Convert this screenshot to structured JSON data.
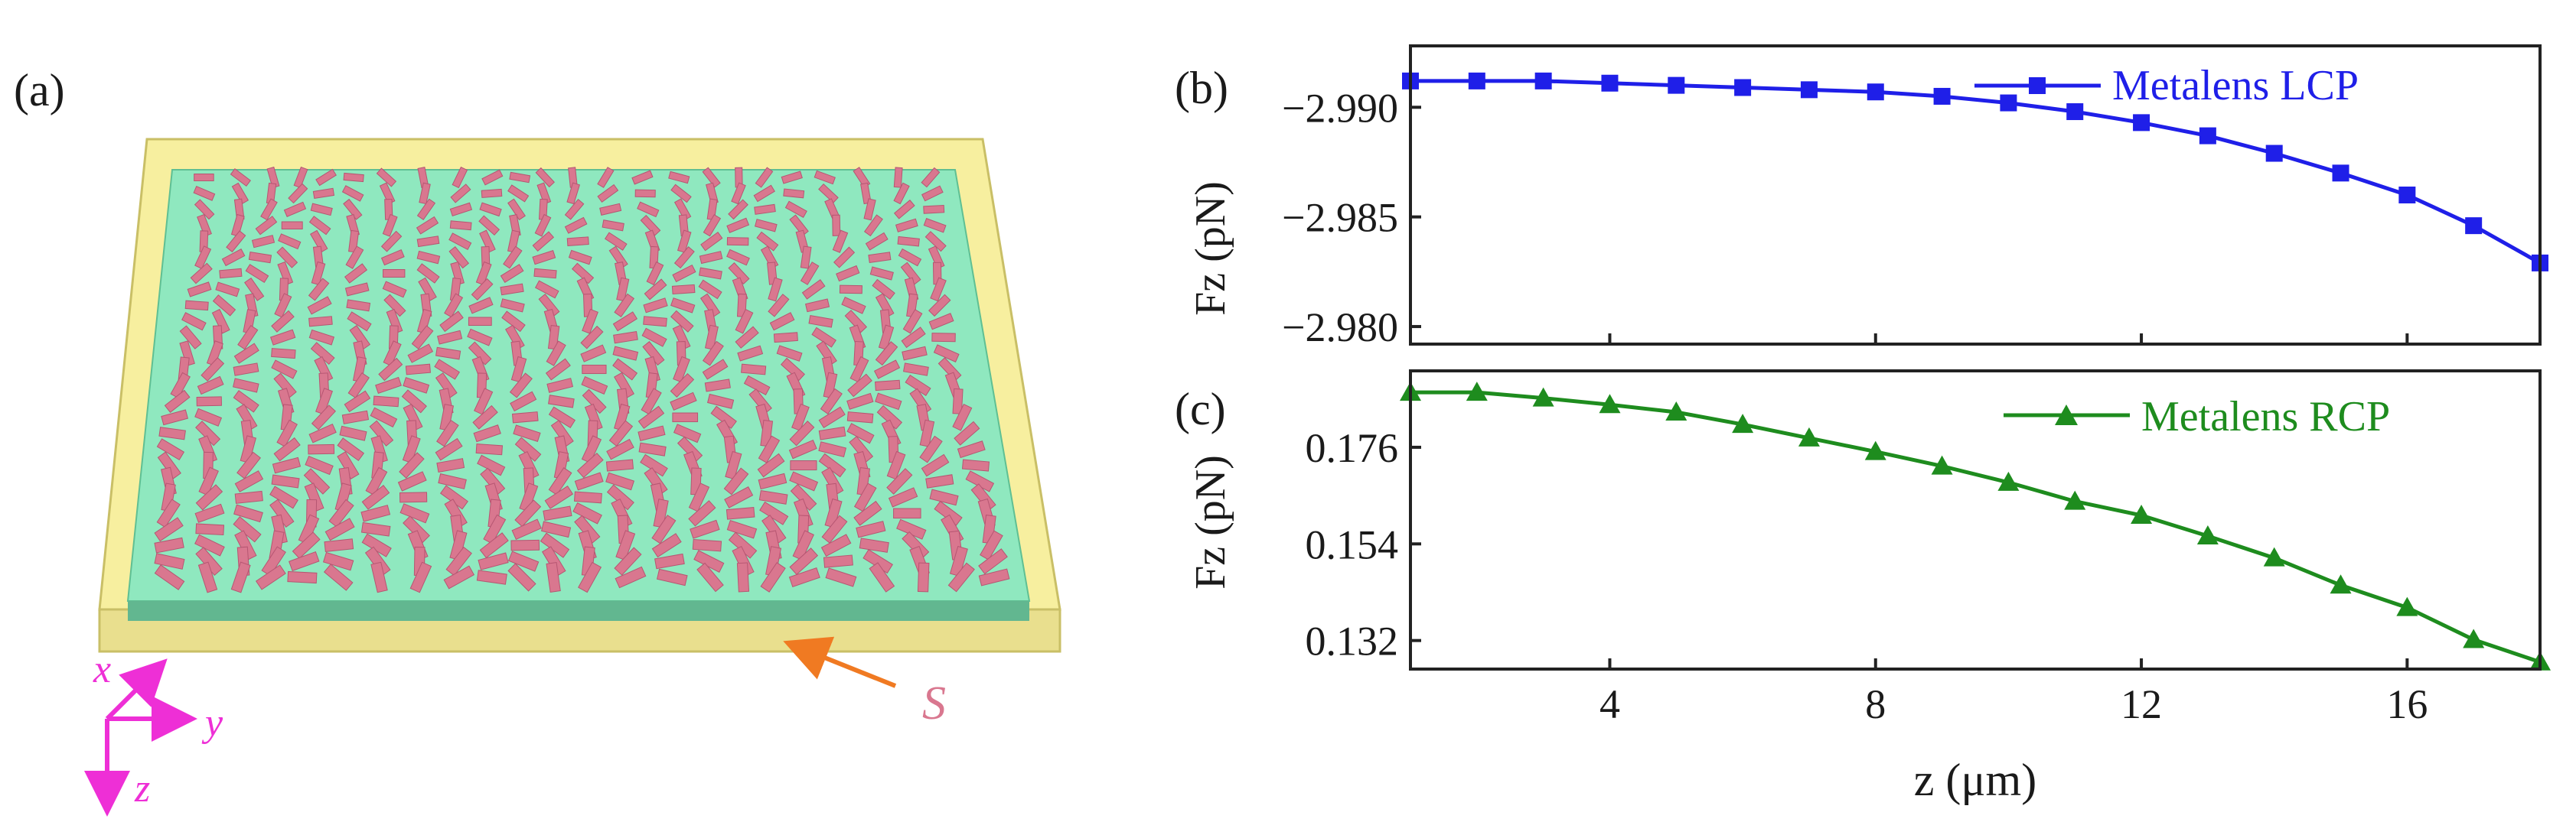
{
  "panel_a": {
    "label": "(a)",
    "annotation_s": "S",
    "axes": {
      "x": "x",
      "y": "y",
      "z": "z"
    },
    "colors": {
      "substrate": "#f7ef9f",
      "layer": "#8fe8bf",
      "fins": "#d9778f",
      "axes": "#ee2fd6",
      "arrow": "#f07a22"
    }
  },
  "chart_data": [
    {
      "type": "line",
      "panel_label": "(b)",
      "ylabel": "Fz (pN)",
      "xlabel": "",
      "legend": "Metalens LCP",
      "legend_position": "top-right",
      "marker": "square",
      "color": "#1f1fe8",
      "y_axis_inverted": true,
      "ylim": [
        -2.9928,
        -2.9792
      ],
      "yticks": [
        -2.99,
        -2.985,
        -2.98
      ],
      "ytick_labels": [
        "−2.990",
        "−2.985",
        "−2.980"
      ],
      "xlim": [
        1,
        18
      ],
      "x": [
        1,
        2,
        3,
        4,
        5,
        6,
        7,
        8,
        9,
        10,
        11,
        12,
        13,
        14,
        15,
        16,
        17,
        18
      ],
      "values": [
        -2.9912,
        -2.9912,
        -2.9912,
        -2.9911,
        -2.991,
        -2.9909,
        -2.9908,
        -2.9907,
        -2.9905,
        -2.9902,
        -2.9898,
        -2.9893,
        -2.9887,
        -2.9879,
        -2.987,
        -2.986,
        -2.9846,
        -2.9829
      ]
    },
    {
      "type": "line",
      "panel_label": "(c)",
      "ylabel": "Fz (pN)",
      "xlabel": "z (μm)",
      "legend": "Metalens RCP",
      "legend_position": "top-right",
      "marker": "triangle",
      "color": "#1e8c1e",
      "y_axis_inverted": true,
      "ylim": [
        0.1934,
        0.1255
      ],
      "yticks": [
        0.132,
        0.154,
        0.176
      ],
      "ytick_labels": [
        "0.132",
        "0.154",
        "0.176"
      ],
      "xlim": [
        1,
        18
      ],
      "xticks": [
        4,
        8,
        12,
        16
      ],
      "xtick_labels": [
        "4",
        "8",
        "12",
        "16"
      ],
      "x": [
        1,
        2,
        3,
        4,
        5,
        6,
        7,
        8,
        9,
        10,
        11,
        12,
        13,
        14,
        15,
        16,
        17,
        18
      ],
      "values": [
        0.1885,
        0.1885,
        0.1872,
        0.1857,
        0.184,
        0.1812,
        0.1781,
        0.175,
        0.1717,
        0.168,
        0.1637,
        0.1605,
        0.1558,
        0.1508,
        0.1446,
        0.1395,
        0.1322,
        0.1271
      ]
    }
  ]
}
